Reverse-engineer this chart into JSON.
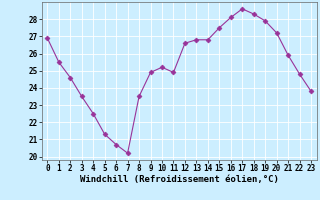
{
  "x": [
    0,
    1,
    2,
    3,
    4,
    5,
    6,
    7,
    8,
    9,
    10,
    11,
    12,
    13,
    14,
    15,
    16,
    17,
    18,
    19,
    20,
    21,
    22,
    23
  ],
  "y": [
    26.9,
    25.5,
    24.6,
    23.5,
    22.5,
    21.3,
    20.7,
    20.2,
    23.5,
    24.9,
    25.2,
    24.9,
    26.6,
    26.8,
    26.8,
    27.5,
    28.1,
    28.6,
    28.3,
    27.9,
    27.2,
    25.9,
    24.8,
    23.8
  ],
  "line_color": "#993399",
  "marker": "D",
  "markersize": 2.5,
  "linewidth": 0.8,
  "bg_color": "#cceeff",
  "grid_color": "#ffffff",
  "xlabel": "Windchill (Refroidissement éolien,°C)",
  "xlim": [
    -0.5,
    23.5
  ],
  "ylim": [
    19.8,
    29.0
  ],
  "yticks": [
    20,
    21,
    22,
    23,
    24,
    25,
    26,
    27,
    28
  ],
  "xticks": [
    0,
    1,
    2,
    3,
    4,
    5,
    6,
    7,
    8,
    9,
    10,
    11,
    12,
    13,
    14,
    15,
    16,
    17,
    18,
    19,
    20,
    21,
    22,
    23
  ],
  "tick_labelsize": 5.5,
  "xlabel_fontsize": 6.5
}
